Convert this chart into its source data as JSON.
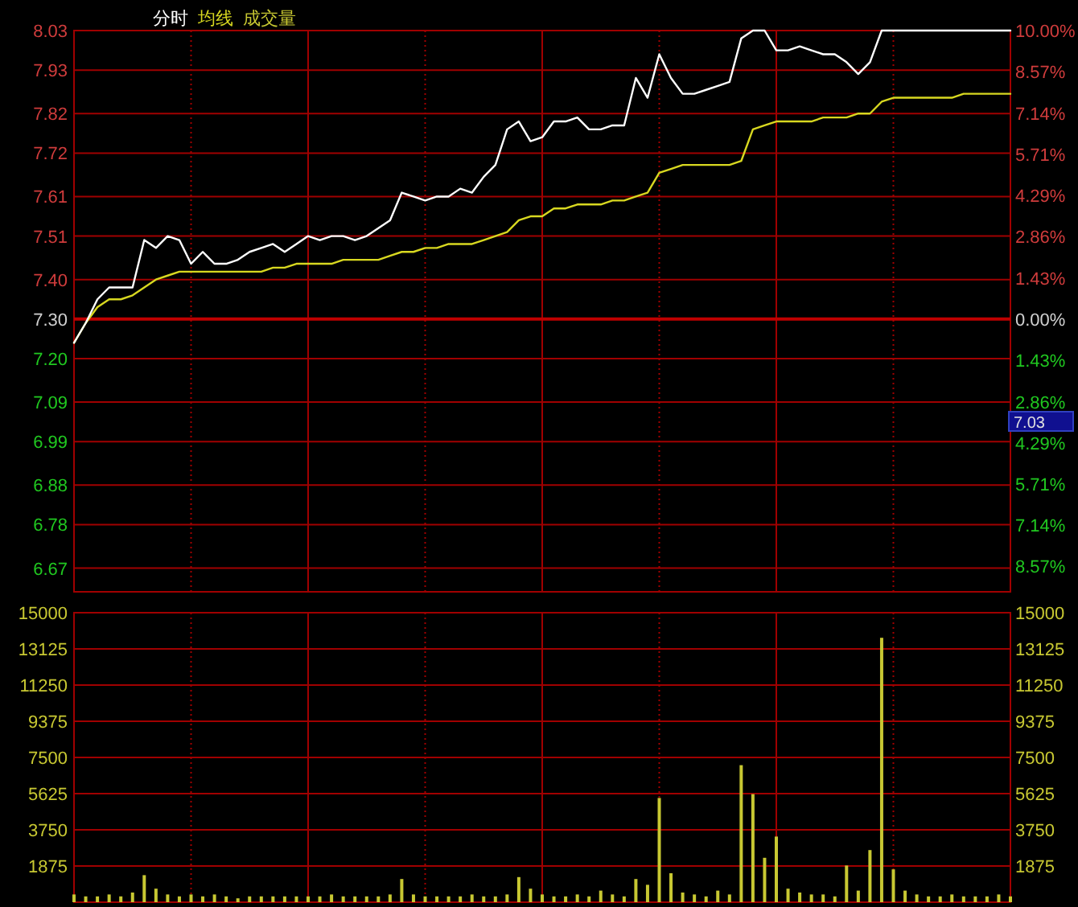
{
  "chart_data": [
    {
      "type": "line",
      "legend": "top left",
      "grid": true,
      "categories": [
        null,
        null,
        null,
        null,
        null,
        null,
        null,
        null,
        null,
        null,
        null,
        null,
        null,
        null,
        null,
        null,
        null,
        null,
        null,
        null,
        null,
        null,
        null,
        null,
        null,
        null,
        null,
        null,
        null,
        null,
        null,
        null,
        null,
        null,
        null,
        null,
        null,
        null,
        null,
        null,
        null,
        null,
        null,
        null,
        null,
        null,
        null,
        null,
        null,
        null,
        null,
        null,
        null,
        null,
        null,
        null,
        null,
        null,
        null,
        null,
        null,
        null,
        null,
        null,
        null,
        null,
        null,
        null,
        null,
        null,
        null,
        null,
        null,
        null,
        null,
        null,
        null,
        null,
        null,
        null,
        null
      ],
      "ylim": [
        6.61,
        8.03
      ],
      "yticks": [
        8.03,
        7.93,
        7.82,
        7.72,
        7.61,
        7.51,
        {
          "value": 7.4,
          "label": "7.40"
        },
        {
          "value": 7.3,
          "label": "7.30"
        },
        {
          "value": 7.2,
          "label": "7.20"
        },
        7.09,
        6.99,
        6.88,
        6.78,
        6.67
      ],
      "y2lim": [
        -9.45,
        10
      ],
      "y2ticks": [
        {
          "value": 10,
          "label": "10.00%"
        },
        {
          "value": 8.57,
          "label": "8.57%"
        },
        {
          "value": 7.14,
          "label": "7.14%"
        },
        {
          "value": 5.71,
          "label": "5.71%"
        },
        {
          "value": 4.29,
          "label": "4.29%"
        },
        {
          "value": 2.86,
          "label": "2.86%"
        },
        {
          "value": 1.43,
          "label": "1.43%"
        },
        {
          "value": 0,
          "label": "0.00%"
        },
        {
          "value": -1.43,
          "label": "1.43%"
        },
        {
          "value": -2.86,
          "label": "2.86%"
        },
        {
          "value": -4.29,
          "label": "4.29%"
        },
        {
          "value": -5.71,
          "label": "5.71%"
        },
        {
          "value": -7.14,
          "label": "7.14%"
        },
        {
          "value": -8.57,
          "label": "8.57%"
        }
      ],
      "ref_lines": [
        {
          "axis": "y",
          "value": 7.3
        }
      ],
      "annotations": [
        "7.03"
      ],
      "series": [
        {
          "name": "分时",
          "color": "#ffffff",
          "values": [
            7.24,
            7.29,
            7.35,
            7.38,
            7.38,
            7.38,
            7.5,
            7.48,
            7.51,
            7.5,
            7.44,
            7.47,
            7.44,
            7.44,
            7.45,
            7.47,
            7.48,
            7.49,
            7.47,
            7.49,
            7.51,
            7.5,
            7.51,
            7.51,
            7.5,
            7.51,
            7.53,
            7.55,
            7.62,
            7.61,
            7.6,
            7.61,
            7.61,
            7.63,
            7.62,
            7.66,
            7.69,
            7.78,
            7.8,
            7.75,
            7.76,
            7.8,
            7.8,
            7.81,
            7.78,
            7.78,
            7.79,
            7.79,
            7.91,
            7.86,
            7.97,
            7.91,
            7.87,
            7.87,
            7.88,
            7.89,
            7.9,
            8.01,
            8.03,
            8.03,
            7.98,
            7.98,
            7.99,
            7.98,
            7.97,
            7.97,
            7.95,
            7.92,
            7.95,
            8.03,
            8.03,
            8.03,
            8.03,
            8.03,
            8.03,
            8.03,
            8.03,
            8.03,
            8.03,
            8.03,
            8.03
          ]
        },
        {
          "name": "均线",
          "color": "#d8d820",
          "values": [
            7.24,
            7.29,
            7.33,
            7.35,
            7.35,
            7.36,
            7.38,
            7.4,
            7.41,
            7.42,
            7.42,
            7.42,
            7.42,
            7.42,
            7.42,
            7.42,
            7.42,
            7.43,
            7.43,
            7.44,
            7.44,
            7.44,
            7.44,
            7.45,
            7.45,
            7.45,
            7.45,
            7.46,
            7.47,
            7.47,
            7.48,
            7.48,
            7.49,
            7.49,
            7.49,
            7.5,
            7.51,
            7.52,
            7.55,
            7.56,
            7.56,
            7.58,
            7.58,
            7.59,
            7.59,
            7.59,
            7.6,
            7.6,
            7.61,
            7.62,
            7.67,
            7.68,
            7.69,
            7.69,
            7.69,
            7.69,
            7.69,
            7.7,
            7.78,
            7.79,
            7.8,
            7.8,
            7.8,
            7.8,
            7.81,
            7.81,
            7.81,
            7.82,
            7.82,
            7.85,
            7.86,
            7.86,
            7.86,
            7.86,
            7.86,
            7.86,
            7.87,
            7.87,
            7.87,
            7.87,
            7.87
          ]
        }
      ]
    },
    {
      "type": "bar",
      "legend": "top left",
      "grid": true,
      "categories": [
        null,
        null,
        null,
        null,
        null,
        null,
        null,
        null,
        null,
        null,
        null,
        null,
        null,
        null,
        null,
        null,
        null,
        null,
        null,
        null,
        null,
        null,
        null,
        null,
        null,
        null,
        null,
        null,
        null,
        null,
        null,
        null,
        null,
        null,
        null,
        null,
        null,
        null,
        null,
        null,
        null,
        null,
        null,
        null,
        null,
        null,
        null,
        null,
        null,
        null,
        null,
        null,
        null,
        null,
        null,
        null,
        null,
        null,
        null,
        null,
        null,
        null,
        null,
        null,
        null,
        null,
        null,
        null,
        null,
        null,
        null,
        null,
        null,
        null,
        null,
        null,
        null,
        null,
        null,
        null,
        null
      ],
      "ylim": [
        0,
        15000
      ],
      "yticks": [
        15000,
        13125,
        11250,
        9375,
        7500,
        5625,
        3750,
        1875
      ],
      "y2lim": [
        0,
        15000
      ],
      "y2ticks": [
        15000,
        13125,
        11250,
        9375,
        7500,
        5625,
        3750,
        1875
      ],
      "series": [
        {
          "name": "成交量",
          "color": "#c8c832",
          "values": [
            400,
            300,
            300,
            400,
            300,
            500,
            1400,
            700,
            400,
            300,
            400,
            300,
            400,
            300,
            200,
            300,
            300,
            300,
            300,
            300,
            300,
            300,
            400,
            300,
            300,
            300,
            300,
            400,
            1200,
            400,
            300,
            300,
            300,
            300,
            400,
            300,
            300,
            400,
            1300,
            700,
            400,
            300,
            300,
            400,
            300,
            600,
            400,
            300,
            1200,
            900,
            5400,
            1500,
            500,
            400,
            300,
            600,
            400,
            7100,
            5600,
            2300,
            3400,
            700,
            500,
            400,
            400,
            300,
            1900,
            600,
            2700,
            13700,
            1700,
            600,
            400,
            300,
            300,
            400,
            300,
            300,
            300,
            400,
            300
          ]
        }
      ]
    }
  ]
}
